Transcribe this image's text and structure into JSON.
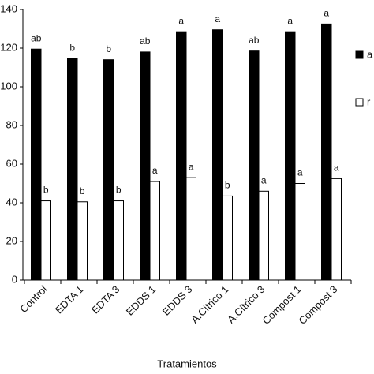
{
  "chart_data": {
    "type": "bar",
    "x_label": "Tratamientos",
    "categories": [
      "Control",
      "EDTA 1",
      "EDTA 3",
      "EDDS 1",
      "EDDS 3",
      "A.Cítrico 1",
      "A.Cítrico 3",
      "Compost 1",
      "Compost 3"
    ],
    "series": [
      {
        "name": "a",
        "color": "#000000",
        "values": [
          119.5,
          114.5,
          114,
          118,
          128.5,
          129.5,
          118.5,
          128.5,
          132.5
        ],
        "annotations": [
          "ab",
          "b",
          "b",
          "ab",
          "a",
          "a",
          "ab",
          "a",
          "a"
        ]
      },
      {
        "name": "r",
        "color": "#ffffff",
        "values": [
          41,
          40.5,
          41,
          51,
          53,
          43.5,
          46,
          50,
          52.5
        ],
        "annotations": [
          "b",
          "b",
          "b",
          "a",
          "a",
          "b",
          "a",
          "a",
          "a"
        ]
      }
    ],
    "ylim": [
      0,
      140
    ],
    "yticks": [
      0,
      20,
      40,
      60,
      80,
      100,
      120,
      140
    ]
  }
}
